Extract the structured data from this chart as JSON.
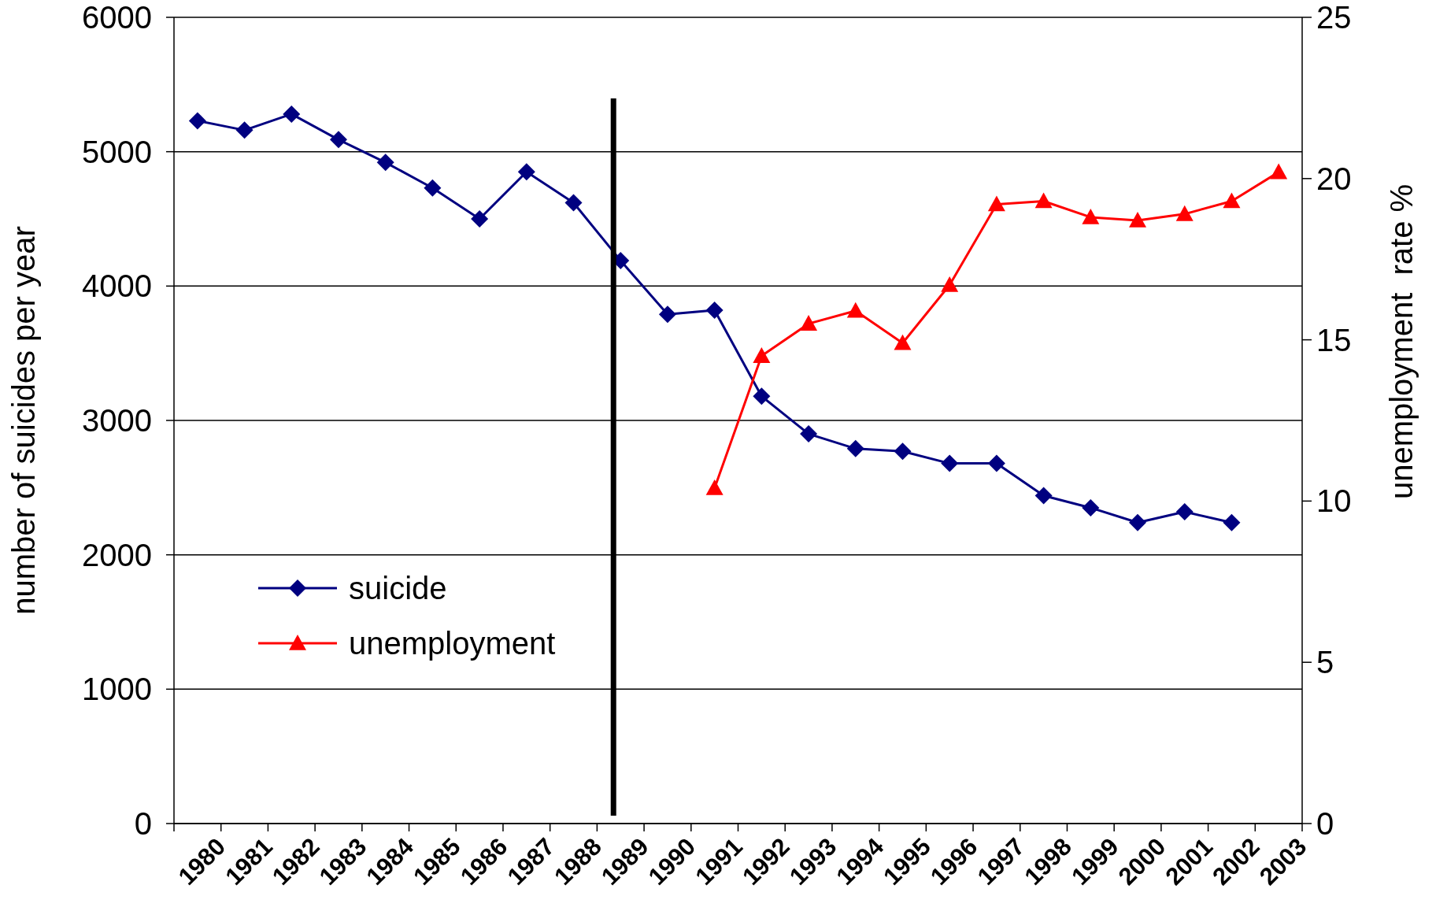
{
  "chart_data": {
    "type": "line",
    "ylabel": "number of suicides per year",
    "y2label": "unemployment  rate %",
    "categories": [
      "1980",
      "1981",
      "1982",
      "1983",
      "1984",
      "1985",
      "1986",
      "1987",
      "1988",
      "1989",
      "1990",
      "1991",
      "1992",
      "1993",
      "1994",
      "1995",
      "1996",
      "1997",
      "1998",
      "1999",
      "2000",
      "2001",
      "2002",
      "2003"
    ],
    "series": [
      {
        "name": "suicide",
        "color": "#000080",
        "marker": "diamond",
        "values": [
          5230,
          5160,
          5280,
          5090,
          4920,
          4730,
          4500,
          4850,
          4620,
          4190,
          3790,
          3820,
          3180,
          2900,
          2790,
          2770,
          2680,
          2680,
          2440,
          2350,
          2240,
          2320,
          2240,
          null
        ]
      },
      {
        "name": "unemployment",
        "color": "#ff0000",
        "marker": "triangle",
        "axis": "y2",
        "values": [
          null,
          null,
          null,
          null,
          null,
          null,
          null,
          null,
          null,
          null,
          null,
          10.4,
          14.5,
          15.5,
          15.9,
          14.9,
          16.7,
          19.2,
          19.3,
          18.8,
          18.7,
          18.9,
          19.3,
          20.2
        ]
      }
    ],
    "ylim": [
      0,
      6000
    ],
    "yticks": [
      0,
      1000,
      2000,
      3000,
      4000,
      5000,
      6000
    ],
    "y2lim": [
      0,
      25
    ],
    "y2ticks": [
      0,
      5,
      10,
      15,
      20,
      25
    ],
    "ref_lines": [
      {
        "axis": "x",
        "value": "1989",
        "color": "#000000"
      }
    ],
    "grid": "y",
    "legend": "left"
  }
}
